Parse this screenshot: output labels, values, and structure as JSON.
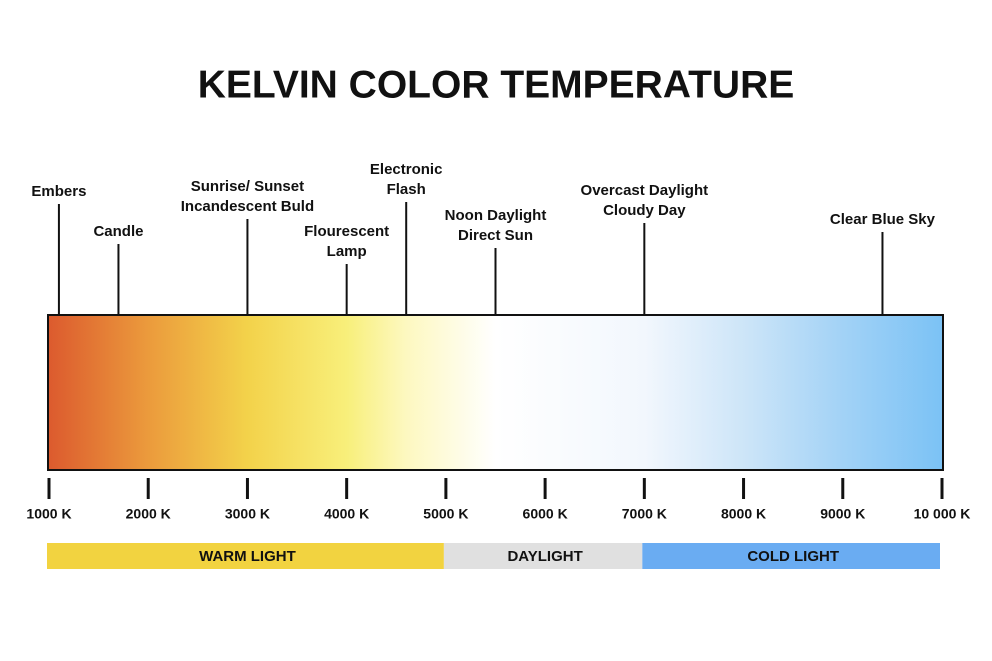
{
  "chart_data": {
    "type": "gradient-scale",
    "title": "KELVIN COLOR TEMPERATURE",
    "xlim": [
      1000,
      10000
    ],
    "xticks": [
      {
        "value": 1000,
        "label": "1000 K"
      },
      {
        "value": 2000,
        "label": "2000 K"
      },
      {
        "value": 3000,
        "label": "3000 K"
      },
      {
        "value": 4000,
        "label": "4000 K"
      },
      {
        "value": 5000,
        "label": "5000 K"
      },
      {
        "value": 6000,
        "label": "6000 K"
      },
      {
        "value": 7000,
        "label": "7000 K"
      },
      {
        "value": 8000,
        "label": "8000 K"
      },
      {
        "value": 9000,
        "label": "9000 K"
      },
      {
        "value": 10000,
        "label": "10 000 K"
      }
    ],
    "gradient": [
      {
        "value": 1000,
        "color": "#dc5a2e"
      },
      {
        "value": 2000,
        "color": "#eb9a3c"
      },
      {
        "value": 3000,
        "color": "#f3d24a"
      },
      {
        "value": 4000,
        "color": "#f8ef7a"
      },
      {
        "value": 4600,
        "color": "#fdf8c0"
      },
      {
        "value": 5500,
        "color": "#ffffff"
      },
      {
        "value": 7000,
        "color": "#f2f7fd"
      },
      {
        "value": 8000,
        "color": "#cde5f8"
      },
      {
        "value": 9000,
        "color": "#a2d2f6"
      },
      {
        "value": 10000,
        "color": "#7bc2f5"
      }
    ],
    "annotations": [
      {
        "value": 1100,
        "label": [
          "Embers"
        ]
      },
      {
        "value": 1700,
        "label": [
          "Candle"
        ]
      },
      {
        "value": 3000,
        "label": [
          "Sunrise/ Sunset",
          "Incandescent Buld"
        ]
      },
      {
        "value": 4000,
        "label": [
          "Flourescent",
          "Lamp"
        ]
      },
      {
        "value": 4600,
        "label": [
          "Electronic",
          "Flash"
        ]
      },
      {
        "value": 5500,
        "label": [
          "Noon Daylight",
          "Direct Sun"
        ]
      },
      {
        "value": 7000,
        "label": [
          "Overcast Daylight",
          "Cloudy Day"
        ]
      },
      {
        "value": 9400,
        "label": [
          "Clear Blue Sky"
        ]
      }
    ],
    "bands": [
      {
        "label": "WARM LIGHT",
        "from": 1000,
        "to": 5000,
        "color": "#f2d340"
      },
      {
        "label": "DAYLIGHT",
        "from": 5000,
        "to": 7000,
        "color": "#e0e0e0"
      },
      {
        "label": "COLD LIGHT",
        "from": 7000,
        "to": 10000,
        "color": "#6aacf2"
      }
    ]
  }
}
